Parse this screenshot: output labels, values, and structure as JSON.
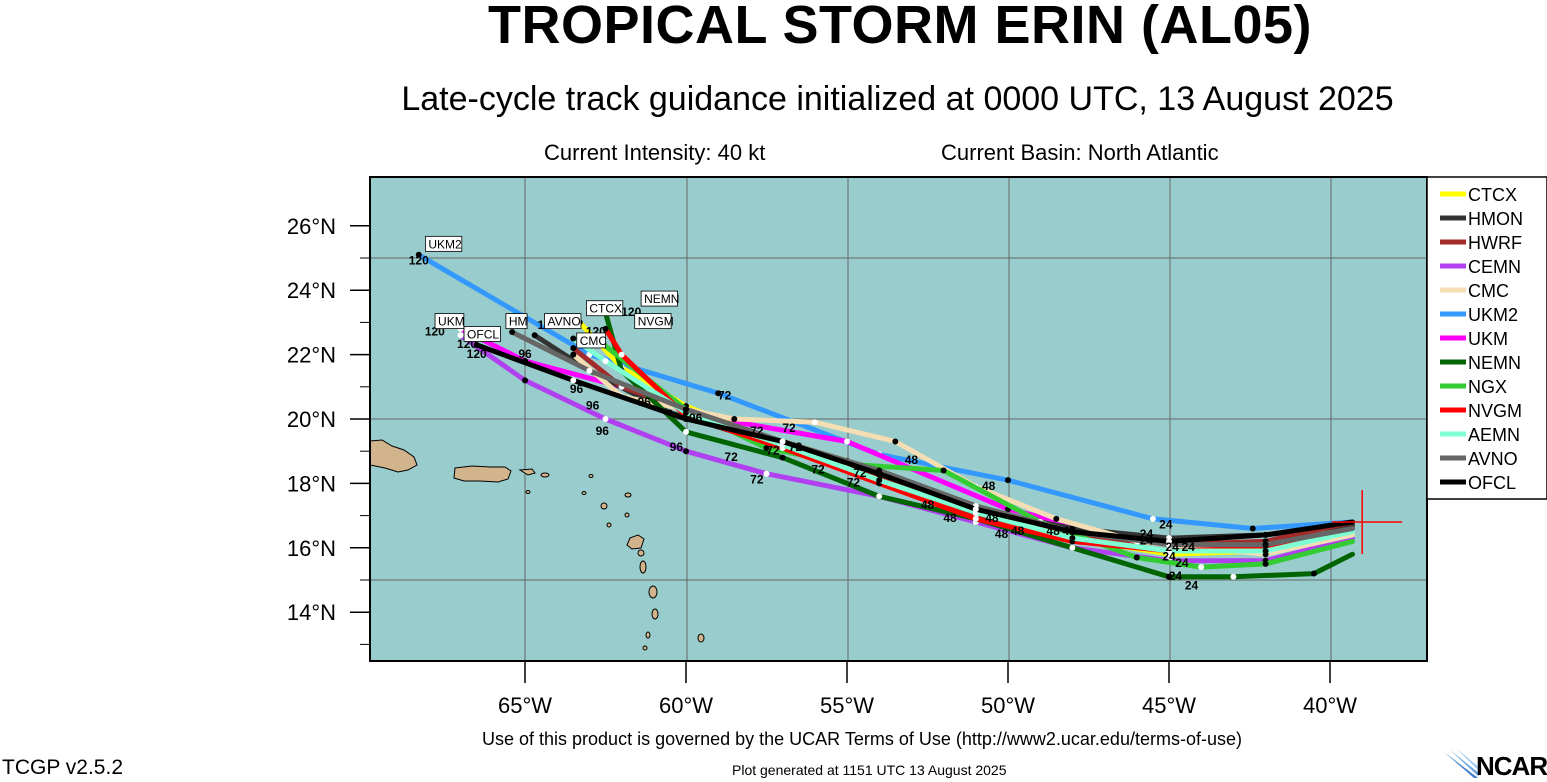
{
  "header": {
    "title": "TROPICAL STORM ERIN (AL05)",
    "subtitle": "Late-cycle track guidance initialized at 0000 UTC, 13 August 2025",
    "intensity": "Current Intensity: 40 kt",
    "basin": "Current Basin: North Atlantic"
  },
  "axes": {
    "lat_labels": [
      "26°N",
      "24°N",
      "22°N",
      "20°N",
      "18°N",
      "16°N",
      "14°N"
    ],
    "lon_labels": [
      "65°W",
      "60°W",
      "55°W",
      "50°W",
      "45°W",
      "40°W"
    ]
  },
  "legend": [
    {
      "name": "CTCX",
      "color": "#ffff00"
    },
    {
      "name": "HMON",
      "color": "#333333"
    },
    {
      "name": "HWRF",
      "color": "#a52a2a"
    },
    {
      "name": "CEMN",
      "color": "#b040f0"
    },
    {
      "name": "CMC",
      "color": "#f5deb3"
    },
    {
      "name": "UKM2",
      "color": "#3399ff"
    },
    {
      "name": "UKM",
      "color": "#ff00ff"
    },
    {
      "name": "NEMN",
      "color": "#006400"
    },
    {
      "name": "NGX",
      "color": "#33cc33"
    },
    {
      "name": "NVGM",
      "color": "#ff0000"
    },
    {
      "name": "AEMN",
      "color": "#7fffd4"
    },
    {
      "name": "AVNO",
      "color": "#666666"
    },
    {
      "name": "OFCL",
      "color": "#000000"
    }
  ],
  "storm_position": {
    "lon": -39.0,
    "lat": 16.8
  },
  "tracks": [
    {
      "name": "UKM2",
      "color": "#3399ff",
      "pts": [
        [
          -39.3,
          16.8
        ],
        [
          -42.4,
          16.6
        ],
        [
          -45.5,
          16.9
        ],
        [
          -50,
          18.1
        ],
        [
          -54,
          18.9
        ],
        [
          -59,
          20.8
        ],
        [
          -63,
          22.0
        ],
        [
          -68.3,
          25.1
        ]
      ]
    },
    {
      "name": "UKM",
      "color": "#ff00ff",
      "pts": [
        [
          -39.3,
          16.5
        ],
        [
          -42,
          15.9
        ],
        [
          -45.8,
          16.2
        ],
        [
          -50,
          17.2
        ],
        [
          -55,
          19.3
        ],
        [
          -59,
          20.0
        ],
        [
          -62,
          21.0
        ],
        [
          -65,
          21.8
        ],
        [
          -67,
          22.8
        ]
      ]
    },
    {
      "name": "CTCX",
      "color": "#ffff00",
      "pts": [
        [
          -39.3,
          16.4
        ],
        [
          -42,
          15.9
        ],
        [
          -45,
          15.8
        ],
        [
          -48,
          16.3
        ],
        [
          -51,
          17.2
        ],
        [
          -55,
          18.7
        ],
        [
          -58,
          19.6
        ],
        [
          -60,
          20.4
        ],
        [
          -62,
          21.6
        ],
        [
          -63.3,
          23.0
        ]
      ]
    },
    {
      "name": "HMON",
      "color": "#333333",
      "pts": [
        [
          -39.3,
          16.7
        ],
        [
          -42,
          16.4
        ],
        [
          -45,
          16.3
        ],
        [
          -48,
          16.6
        ],
        [
          -51,
          17.2
        ],
        [
          -54,
          18.3
        ],
        [
          -57.5,
          19.3
        ],
        [
          -60.5,
          20.2
        ],
        [
          -63,
          21.5
        ],
        [
          -64.7,
          22.6
        ]
      ]
    },
    {
      "name": "HWRF",
      "color": "#a52a2a",
      "pts": [
        [
          -39.3,
          16.8
        ],
        [
          -42,
          16.2
        ],
        [
          -45,
          16.1
        ],
        [
          -48,
          16.4
        ],
        [
          -51,
          17.0
        ],
        [
          -54,
          18.2
        ],
        [
          -57,
          19.2
        ],
        [
          -60,
          20.3
        ],
        [
          -62,
          21.0
        ],
        [
          -63.5,
          22.2
        ]
      ]
    },
    {
      "name": "CEMN",
      "color": "#b040f0",
      "pts": [
        [
          -39.3,
          16.3
        ],
        [
          -42,
          15.6
        ],
        [
          -45,
          15.6
        ],
        [
          -48,
          16.0
        ],
        [
          -51,
          16.8
        ],
        [
          -54,
          17.6
        ],
        [
          -57.5,
          18.3
        ],
        [
          -60,
          19.0
        ],
        [
          -62.5,
          20.0
        ],
        [
          -65,
          21.2
        ],
        [
          -67,
          22.6
        ]
      ]
    },
    {
      "name": "CMC",
      "color": "#f5deb3",
      "pts": [
        [
          -39.3,
          16.4
        ],
        [
          -42,
          15.8
        ],
        [
          -46,
          16.2
        ],
        [
          -48.5,
          16.9
        ],
        [
          -51,
          17.9
        ],
        [
          -53.5,
          19.3
        ],
        [
          -56,
          19.9
        ],
        [
          -58.5,
          20.0
        ],
        [
          -62,
          20.7
        ],
        [
          -63.5,
          22.0
        ]
      ]
    },
    {
      "name": "NEMN",
      "color": "#006400",
      "pts": [
        [
          -39.3,
          15.8
        ],
        [
          -40.5,
          15.2
        ],
        [
          -43,
          15.1
        ],
        [
          -45,
          15.1
        ],
        [
          -48,
          16.0
        ],
        [
          -51,
          16.9
        ],
        [
          -54,
          17.6
        ],
        [
          -57,
          18.8
        ],
        [
          -60,
          19.6
        ],
        [
          -62,
          21.5
        ],
        [
          -62.5,
          23.3
        ]
      ]
    },
    {
      "name": "NGX",
      "color": "#33cc33",
      "pts": [
        [
          -39.3,
          16.2
        ],
        [
          -42,
          15.5
        ],
        [
          -44,
          15.4
        ],
        [
          -46,
          15.7
        ],
        [
          -49,
          16.8
        ],
        [
          -52,
          18.4
        ],
        [
          -55,
          18.6
        ],
        [
          -57.5,
          19.1
        ],
        [
          -60,
          20.3
        ],
        [
          -62.8,
          22.5
        ]
      ]
    },
    {
      "name": "NVGM",
      "color": "#ff0000",
      "pts": [
        [
          -39.3,
          16.6
        ],
        [
          -42,
          16.0
        ],
        [
          -45,
          15.9
        ],
        [
          -48,
          16.2
        ],
        [
          -51,
          16.9
        ],
        [
          -54,
          18.0
        ],
        [
          -57,
          19.1
        ],
        [
          -60,
          20.1
        ],
        [
          -62,
          22.0
        ],
        [
          -62.5,
          22.8
        ]
      ]
    },
    {
      "name": "AEMN",
      "color": "#7fffd4",
      "pts": [
        [
          -39.3,
          16.5
        ],
        [
          -42,
          15.9
        ],
        [
          -45,
          15.9
        ],
        [
          -48,
          16.3
        ],
        [
          -51,
          17.1
        ],
        [
          -54,
          18.1
        ],
        [
          -57,
          19.2
        ],
        [
          -60,
          20.2
        ],
        [
          -62.5,
          21.8
        ],
        [
          -63.5,
          22.5
        ]
      ]
    },
    {
      "name": "AVNO",
      "color": "#666666",
      "pts": [
        [
          -39.3,
          16.6
        ],
        [
          -42,
          16.1
        ],
        [
          -45,
          16.1
        ],
        [
          -48,
          16.5
        ],
        [
          -51,
          17.3
        ],
        [
          -54,
          18.4
        ],
        [
          -57,
          19.3
        ],
        [
          -60,
          20.3
        ],
        [
          -63,
          21.5
        ],
        [
          -65.4,
          22.7
        ]
      ]
    },
    {
      "name": "OFCL",
      "color": "#000000",
      "pts": [
        [
          -39.3,
          16.8
        ],
        [
          -42,
          16.4
        ],
        [
          -45,
          16.2
        ],
        [
          -48,
          16.5
        ],
        [
          -51,
          17.2
        ],
        [
          -54,
          18.3
        ],
        [
          -57,
          19.3
        ],
        [
          -60,
          20.0
        ],
        [
          -63.5,
          21.2
        ],
        [
          -66.5,
          22.3
        ]
      ]
    }
  ],
  "end_labels": [
    {
      "text": "UKM2",
      "lon": -68.0,
      "lat": 25.3
    },
    {
      "text": "UKM",
      "lon": -67.7,
      "lat": 22.9
    },
    {
      "text": "OFCL",
      "lon": -66.8,
      "lat": 22.5
    },
    {
      "text": "HM",
      "lon": -65.5,
      "lat": 22.9
    },
    {
      "text": "AVNO",
      "lon": -64.3,
      "lat": 22.9
    },
    {
      "text": "CTCX",
      "lon": -63.0,
      "lat": 23.3
    },
    {
      "text": "NEMN",
      "lon": -61.3,
      "lat": 23.6
    },
    {
      "text": "NVGM",
      "lon": -61.5,
      "lat": 22.9
    },
    {
      "text": "CMC",
      "lon": -63.3,
      "lat": 22.3
    }
  ],
  "hour_labels": [
    {
      "text": "120",
      "lon": -68.3,
      "lat": 24.8
    },
    {
      "text": "120",
      "lon": -67.8,
      "lat": 22.6
    },
    {
      "text": "120",
      "lon": -66.8,
      "lat": 22.2
    },
    {
      "text": "120",
      "lon": -66.5,
      "lat": 21.9
    },
    {
      "text": "120",
      "lon": -64.3,
      "lat": 22.8
    },
    {
      "text": "120",
      "lon": -62.8,
      "lat": 22.6
    },
    {
      "text": "120",
      "lon": -61.7,
      "lat": 23.2
    },
    {
      "text": "96",
      "lon": -63.4,
      "lat": 20.8
    },
    {
      "text": "96",
      "lon": -62.9,
      "lat": 20.3
    },
    {
      "text": "96",
      "lon": -62.6,
      "lat": 19.5
    },
    {
      "text": "96",
      "lon": -61.3,
      "lat": 20.4
    },
    {
      "text": "96",
      "lon": -59.7,
      "lat": 19.9
    },
    {
      "text": "96",
      "lon": -60.3,
      "lat": 19.0
    },
    {
      "text": "96",
      "lon": -65.0,
      "lat": 21.9
    },
    {
      "text": "72",
      "lon": -58.8,
      "lat": 20.6
    },
    {
      "text": "72",
      "lon": -56.8,
      "lat": 19.6
    },
    {
      "text": "72",
      "lon": -57.8,
      "lat": 19.5
    },
    {
      "text": "72",
      "lon": -57.3,
      "lat": 18.9
    },
    {
      "text": "72",
      "lon": -56.6,
      "lat": 19.0
    },
    {
      "text": "72",
      "lon": -58.6,
      "lat": 18.7
    },
    {
      "text": "72",
      "lon": -57.8,
      "lat": 18.0
    },
    {
      "text": "72",
      "lon": -55.9,
      "lat": 18.3
    },
    {
      "text": "72",
      "lon": -54.6,
      "lat": 18.2
    },
    {
      "text": "72",
      "lon": -54.8,
      "lat": 17.9
    },
    {
      "text": "48",
      "lon": -53.0,
      "lat": 18.6
    },
    {
      "text": "48",
      "lon": -50.6,
      "lat": 17.8
    },
    {
      "text": "48",
      "lon": -51.8,
      "lat": 16.8
    },
    {
      "text": "48",
      "lon": -52.5,
      "lat": 17.2
    },
    {
      "text": "48",
      "lon": -50.5,
      "lat": 16.8
    },
    {
      "text": "48",
      "lon": -49.7,
      "lat": 16.4
    },
    {
      "text": "48",
      "lon": -50.2,
      "lat": 16.3
    },
    {
      "text": "48",
      "lon": -48.6,
      "lat": 16.4
    },
    {
      "text": "48",
      "lon": -48.1,
      "lat": 16.4
    },
    {
      "text": "24",
      "lon": -45.1,
      "lat": 16.6
    },
    {
      "text": "24",
      "lon": -45.7,
      "lat": 16.1
    },
    {
      "text": "24",
      "lon": -45.7,
      "lat": 16.3
    },
    {
      "text": "24",
      "lon": -44.9,
      "lat": 15.9
    },
    {
      "text": "24",
      "lon": -44.4,
      "lat": 15.9
    },
    {
      "text": "24",
      "lon": -45.0,
      "lat": 15.6
    },
    {
      "text": "24",
      "lon": -44.6,
      "lat": 15.4
    },
    {
      "text": "24",
      "lon": -44.8,
      "lat": 15.0
    },
    {
      "text": "24",
      "lon": -44.3,
      "lat": 14.7
    }
  ],
  "footer": {
    "terms": "Use of this product is governed by the UCAR Terms of Use (http://www2.ucar.edu/terms-of-use)",
    "generated": "Plot generated at 1151 UTC   13 August 2025",
    "version": "TCGP v2.5.2",
    "logo": "NCAR"
  }
}
